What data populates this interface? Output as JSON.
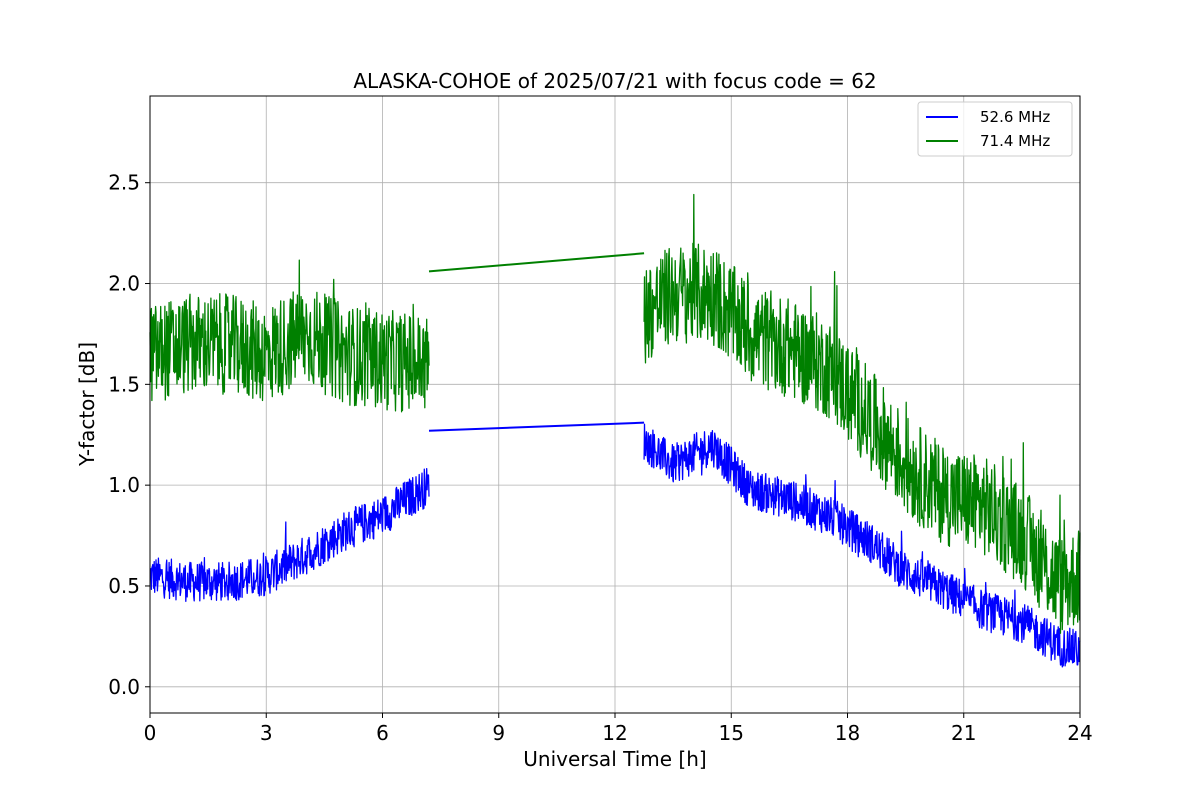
{
  "chart_data": {
    "type": "line",
    "title": "ALASKA-COHOE of 2025/07/21 with focus code = 62",
    "xlabel": "Universal Time [h]",
    "ylabel": "Y-factor [dB]",
    "xlim": [
      0,
      24
    ],
    "ylim": [
      -0.13,
      2.93
    ],
    "xticks": [
      "0",
      "3",
      "6",
      "9",
      "12",
      "15",
      "18",
      "21",
      "24"
    ],
    "yticks": [
      "0.0",
      "0.5",
      "1.0",
      "1.5",
      "2.0",
      "2.5"
    ],
    "grid": true,
    "legend_position": "top-right",
    "series": [
      {
        "name": "52.6 MHz",
        "color": "#0000ff",
        "noise_amplitude": 0.1,
        "segments": [
          {
            "x": [
              0,
              1,
              2,
              3,
              4,
              5,
              6,
              7.2
            ],
            "y": [
              0.55,
              0.52,
              0.52,
              0.55,
              0.65,
              0.77,
              0.85,
              1.0
            ]
          },
          {
            "x": [
              12.75,
              13.5,
              14.5,
              15.5,
              16.5,
              17.5,
              18.5,
              19.5,
              20.5,
              21.5,
              22.5,
              23.5,
              24
            ],
            "y": [
              1.22,
              1.1,
              1.2,
              0.98,
              0.93,
              0.85,
              0.73,
              0.57,
              0.48,
              0.38,
              0.32,
              0.2,
              0.18
            ]
          }
        ],
        "connector": {
          "x": [
            7.2,
            12.75
          ],
          "y": [
            1.27,
            1.31
          ]
        }
      },
      {
        "name": "71.4 MHz",
        "color": "#008000",
        "noise_amplitude": 0.25,
        "segments": [
          {
            "x": [
              0,
              1,
              2,
              3,
              4,
              5,
              6,
              7.2
            ],
            "y": [
              1.65,
              1.7,
              1.7,
              1.65,
              1.75,
              1.65,
              1.62,
              1.6
            ]
          },
          {
            "x": [
              12.75,
              13.5,
              14.5,
              15.5,
              16.5,
              17.5,
              18.5,
              19.5,
              20.5,
              21.5,
              22.5,
              23.5,
              24
            ],
            "y": [
              1.85,
              1.95,
              1.95,
              1.75,
              1.68,
              1.58,
              1.35,
              1.1,
              0.95,
              0.9,
              0.75,
              0.5,
              0.55
            ]
          }
        ],
        "connector": {
          "x": [
            7.2,
            12.75
          ],
          "y": [
            2.06,
            2.15
          ]
        }
      }
    ]
  }
}
